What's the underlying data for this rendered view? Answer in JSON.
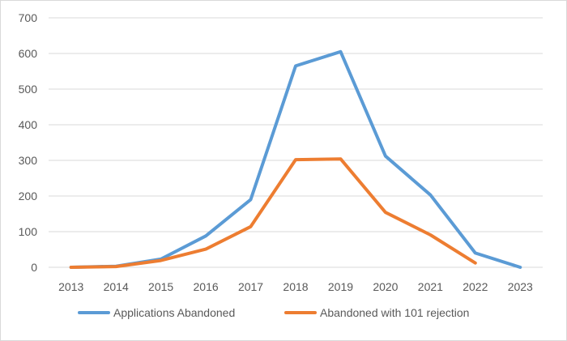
{
  "chart_data": {
    "type": "line",
    "title": "",
    "xlabel": "",
    "ylabel": "",
    "x": [
      "2013",
      "2014",
      "2015",
      "2016",
      "2017",
      "2018",
      "2019",
      "2020",
      "2021",
      "2022",
      "2023"
    ],
    "ylim": [
      0,
      700
    ],
    "yticks": [
      0,
      100,
      200,
      300,
      400,
      500,
      600,
      700
    ],
    "grid": true,
    "legend_position": "bottom",
    "series": [
      {
        "name": "Applications Abandoned",
        "color": "#5b9bd5",
        "values": [
          0,
          3,
          23,
          88,
          190,
          565,
          605,
          312,
          203,
          40,
          0
        ]
      },
      {
        "name": "Abandoned with 101 rejection",
        "color": "#ed7d31",
        "values": [
          0,
          2,
          19,
          51,
          114,
          302,
          304,
          154,
          91,
          12,
          null
        ]
      }
    ]
  }
}
